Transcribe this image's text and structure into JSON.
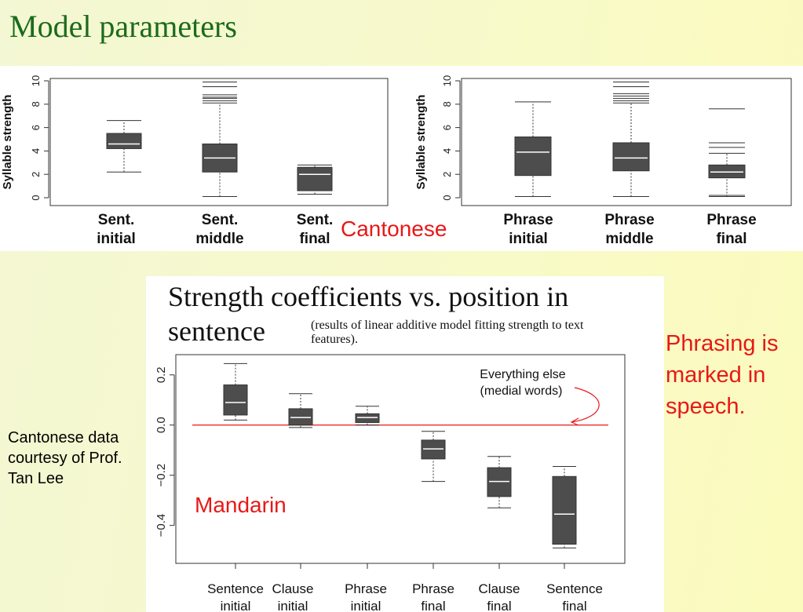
{
  "slide": {
    "title": "Model parameters",
    "cantonese_label": "Cantonese",
    "mandarin_label": "Mandarin",
    "phrasing_note": "Phrasing is marked in speech.",
    "credit": "Cantonese data courtesy of Prof. Tan Lee",
    "colors": {
      "title": "#1b6b1b",
      "annotation": "#e81818",
      "box_fill": "#4d4d4d",
      "median": "#ffffff"
    }
  },
  "chart_data": [
    {
      "type": "boxplot",
      "ylabel": "Syllable strength",
      "ylim": [
        0,
        10
      ],
      "yticks": [
        "0",
        "2",
        "4",
        "6",
        "8",
        "10"
      ],
      "categories": [
        [
          "Sent.",
          "initial"
        ],
        [
          "Sent.",
          "middle"
        ],
        [
          "Sent.",
          "final"
        ]
      ],
      "boxes": [
        {
          "whisker_low": 2.2,
          "q1": 4.2,
          "median": 4.6,
          "q3": 5.5,
          "whisker_high": 6.6,
          "outliers": []
        },
        {
          "whisker_low": 0.1,
          "q1": 2.2,
          "median": 3.4,
          "q3": 4.6,
          "whisker_high": 8.1,
          "outliers": [
            8.3,
            8.5,
            8.6,
            8.8,
            9.5,
            9.9
          ]
        },
        {
          "whisker_low": 0.3,
          "q1": 0.6,
          "median": 2.0,
          "q3": 2.6,
          "whisker_high": 2.8,
          "outliers": []
        }
      ]
    },
    {
      "type": "boxplot",
      "ylabel": "Syllable strength",
      "ylim": [
        0,
        10
      ],
      "yticks": [
        "0",
        "2",
        "4",
        "6",
        "8",
        "10"
      ],
      "categories": [
        [
          "Phrase",
          "initial"
        ],
        [
          "Phrase",
          "middle"
        ],
        [
          "Phrase",
          "final"
        ]
      ],
      "boxes": [
        {
          "whisker_low": 0.1,
          "q1": 1.9,
          "median": 3.9,
          "q3": 5.2,
          "whisker_high": 8.2,
          "outliers": []
        },
        {
          "whisker_low": 0.1,
          "q1": 2.3,
          "median": 3.4,
          "q3": 4.7,
          "whisker_high": 8.1,
          "outliers": [
            8.3,
            8.5,
            8.7,
            8.9,
            9.5,
            9.9
          ]
        },
        {
          "whisker_low": 0.1,
          "q1": 1.7,
          "median": 2.2,
          "q3": 2.8,
          "whisker_high": 3.8,
          "outliers": [
            0.2,
            4.3,
            4.7,
            7.6
          ]
        }
      ]
    },
    {
      "type": "boxplot",
      "title": "Strength coefficients vs. position in sentence",
      "subtitle": "(results of linear additive model fitting strength to text features).",
      "ylim": [
        -0.52,
        0.24
      ],
      "yticks": [
        "-0.4",
        "-0.2",
        "0.0",
        "0.2"
      ],
      "reference_line": 0.0,
      "annotation": [
        "Everything else",
        "(medial words)"
      ],
      "categories": [
        [
          "Sentence",
          "initial"
        ],
        [
          "Clause",
          "initial"
        ],
        [
          "Phrase",
          "initial"
        ],
        [
          "Phrase",
          "final"
        ],
        [
          "Clause",
          "final"
        ],
        [
          "Sentence",
          "final"
        ]
      ],
      "boxes": [
        {
          "whisker_low": 0.02,
          "q1": 0.04,
          "median": 0.09,
          "q3": 0.16,
          "whisker_high": 0.245
        },
        {
          "whisker_low": -0.01,
          "q1": 0.0,
          "median": 0.03,
          "q3": 0.065,
          "whisker_high": 0.125
        },
        {
          "whisker_low": 0.0,
          "q1": 0.01,
          "median": 0.03,
          "q3": 0.045,
          "whisker_high": 0.075
        },
        {
          "whisker_low": -0.225,
          "q1": -0.135,
          "median": -0.095,
          "q3": -0.06,
          "whisker_high": -0.025
        },
        {
          "whisker_low": -0.33,
          "q1": -0.285,
          "median": -0.225,
          "q3": -0.17,
          "whisker_high": -0.125
        },
        {
          "whisker_low": -0.49,
          "q1": -0.475,
          "median": -0.355,
          "q3": -0.205,
          "whisker_high": -0.165
        }
      ]
    }
  ]
}
